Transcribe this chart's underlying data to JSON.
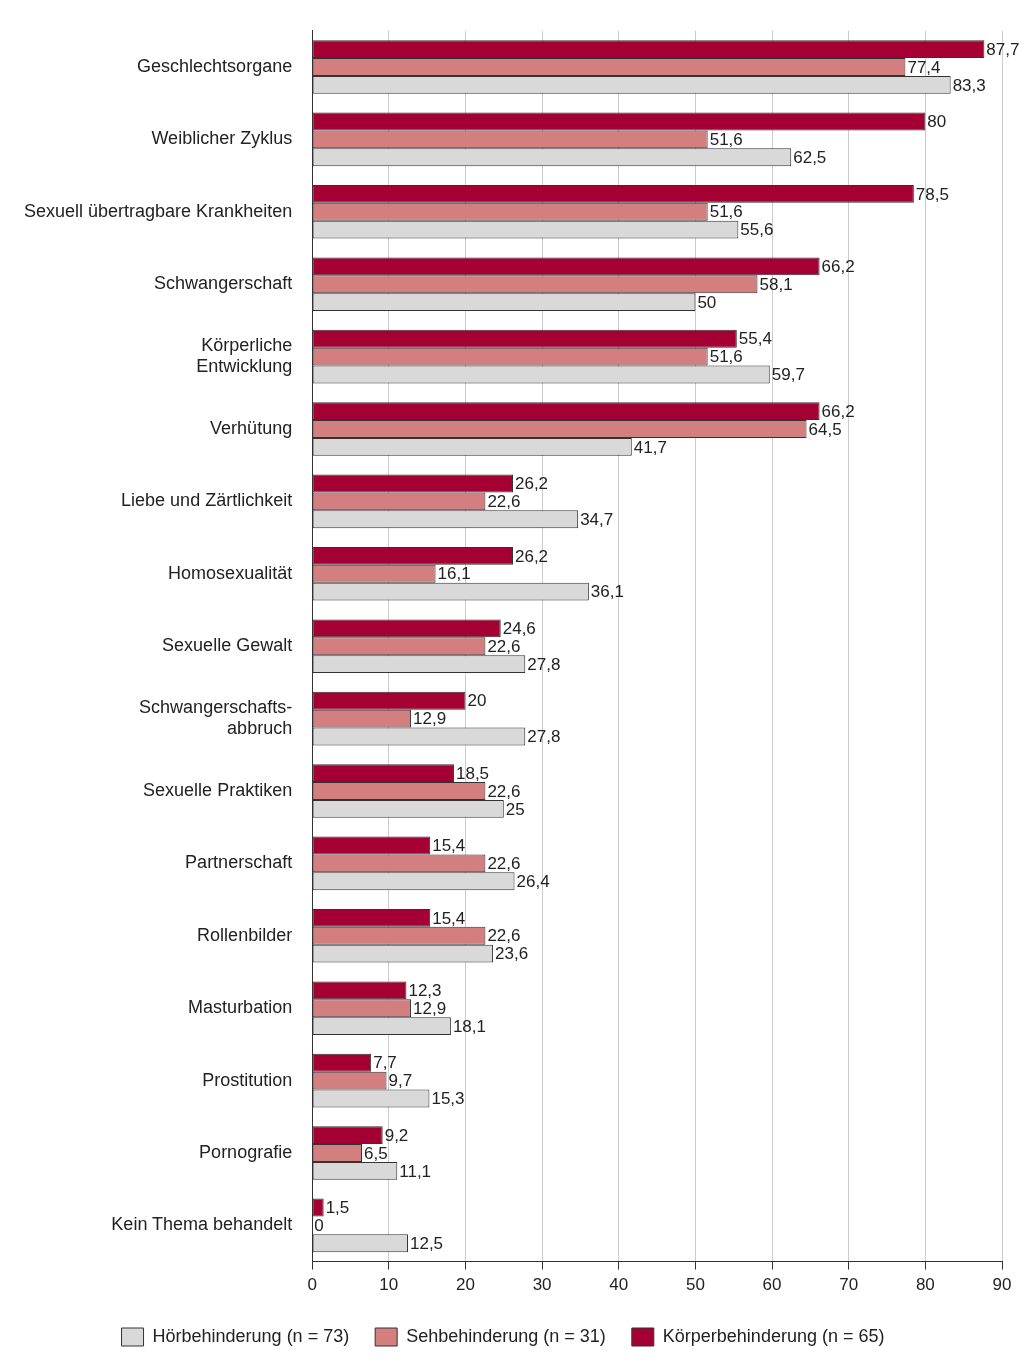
{
  "chart_data": {
    "type": "bar",
    "orientation": "horizontal",
    "categories": [
      "Geschlechtsorgane",
      "Weiblicher Zyklus",
      "Sexuell übertragbare Krankheiten",
      "Schwangerschaft",
      "Körperliche\nEntwicklung",
      "Verhütung",
      "Liebe und Zärtlichkeit",
      "Homosexualität",
      "Sexuelle Gewalt",
      "Schwangerschafts-\nabbruch",
      "Sexuelle Praktiken",
      "Partnerschaft",
      "Rollenbilder",
      "Masturbation",
      "Prostitution",
      "Pornografie",
      "Kein Thema behandelt"
    ],
    "series": [
      {
        "name": "Körperbehinderung (n = 65)",
        "color": "#a50034",
        "values": [
          87.7,
          80,
          78.5,
          66.2,
          55.4,
          66.2,
          26.2,
          26.2,
          24.6,
          20,
          18.5,
          15.4,
          15.4,
          12.3,
          7.7,
          9.2,
          1.5
        ],
        "value_labels": [
          "87,7",
          "80",
          "78,5",
          "66,2",
          "55,4",
          "66,2",
          "26,2",
          "26,2",
          "24,6",
          "20",
          "18,5",
          "15,4",
          "15,4",
          "12,3",
          "7,7",
          "9,2",
          "1,5"
        ]
      },
      {
        "name": "Sehbehinderung (n = 31)",
        "color": "#d37f7f",
        "values": [
          77.4,
          51.6,
          51.6,
          58.1,
          51.6,
          64.5,
          22.6,
          16.1,
          22.6,
          12.9,
          22.6,
          22.6,
          22.6,
          12.9,
          9.7,
          6.5,
          0
        ],
        "value_labels": [
          "77,4",
          "51,6",
          "51,6",
          "58,1",
          "51,6",
          "64,5",
          "22,6",
          "16,1",
          "22,6",
          "12,9",
          "22,6",
          "22,6",
          "22,6",
          "12,9",
          "9,7",
          "6,5",
          "0"
        ]
      },
      {
        "name": "Hörbehinderung (n = 73)",
        "color": "#d9d9d9",
        "values": [
          83.3,
          62.5,
          55.6,
          50,
          59.7,
          41.7,
          34.7,
          36.1,
          27.8,
          27.8,
          25,
          26.4,
          23.6,
          18.1,
          15.3,
          11.1,
          12.5
        ],
        "value_labels": [
          "83,3",
          "62,5",
          "55,6",
          "50",
          "59,7",
          "41,7",
          "34,7",
          "36,1",
          "27,8",
          "27,8",
          "25",
          "26,4",
          "23,6",
          "18,1",
          "15,3",
          "11,1",
          "12,5"
        ]
      }
    ],
    "xlim": [
      0,
      90
    ],
    "xticks": [
      0,
      10,
      20,
      30,
      40,
      50,
      60,
      70,
      80,
      90
    ],
    "grid": "x",
    "legend": "bottom"
  }
}
